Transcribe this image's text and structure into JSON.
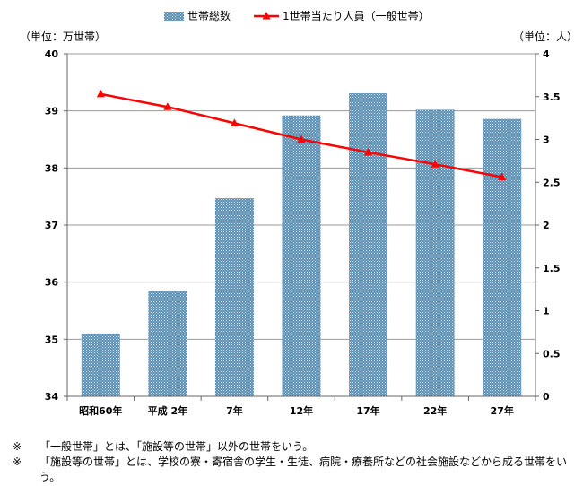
{
  "chart_data": {
    "type": "bar",
    "categories": [
      "昭和60年",
      "平成 2年",
      "7年",
      "12年",
      "17年",
      "22年",
      "27年"
    ],
    "series": [
      {
        "name": "世帯総数",
        "type": "bar",
        "axis": "left",
        "values": [
          35.1,
          35.85,
          37.47,
          38.92,
          39.31,
          39.02,
          38.86
        ]
      },
      {
        "name": "1世帯当たり人員（一般世帯）",
        "type": "line",
        "axis": "right",
        "values": [
          3.53,
          3.38,
          3.19,
          3.0,
          2.85,
          2.71,
          2.56
        ]
      }
    ],
    "ylim": [
      34,
      40
    ],
    "y_ticks": [
      "34",
      "35",
      "36",
      "37",
      "38",
      "39",
      "40"
    ],
    "y2lim": [
      0,
      4
    ],
    "y2_ticks": [
      "0",
      "0.5",
      "1",
      "1.5",
      "2",
      "2.5",
      "3",
      "3.5",
      "4"
    ],
    "ylabel": "（単位：万世帯）",
    "y2label": "（単位：人）",
    "grid": true,
    "legend": "top",
    "colors": {
      "bar": "#5b8fb3",
      "line": "#ff0000",
      "grid": "#999999"
    }
  },
  "notes": [
    {
      "mark": "※",
      "text": "「一般世帯」とは、「施設等の世帯」以外の世帯をいう。"
    },
    {
      "mark": "※",
      "text": "「施設等の世帯」とは、学校の寮・寄宿舎の学生・生徒、病院・療養所などの社会施設などから成る世帯をいう。"
    }
  ]
}
